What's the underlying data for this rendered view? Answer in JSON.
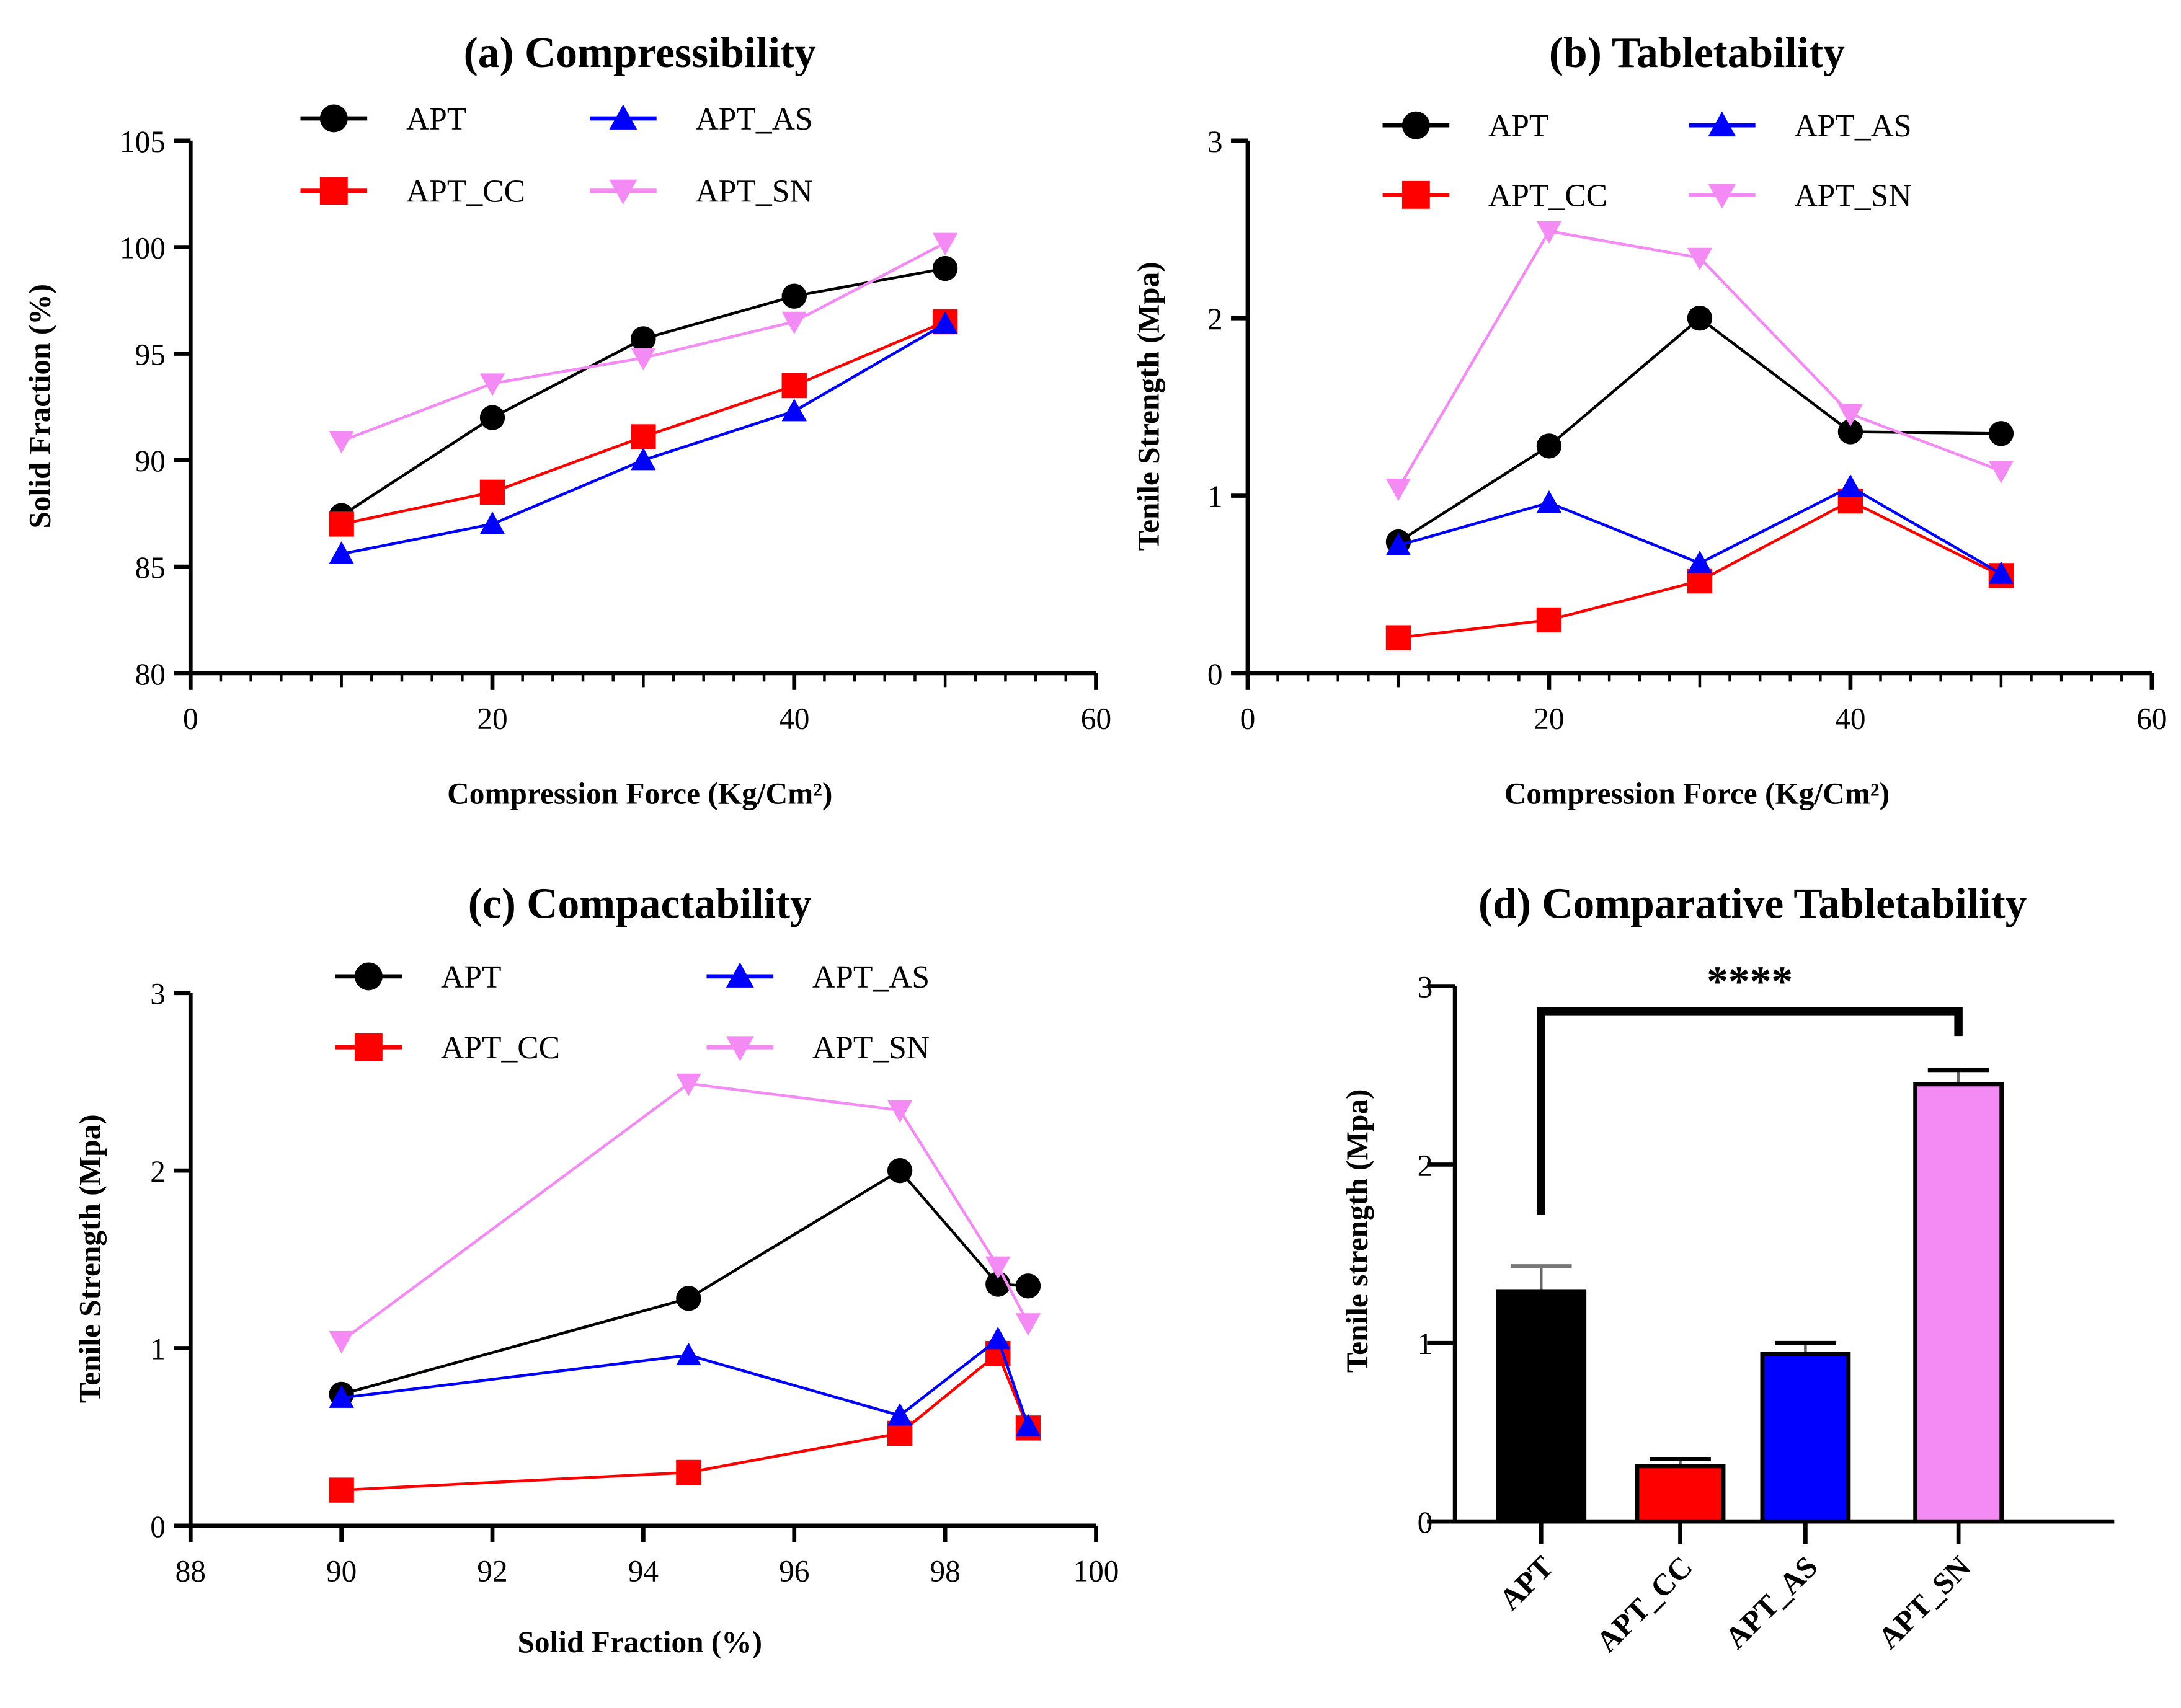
{
  "chart_data": [
    {
      "type": "line",
      "title": "(a) Compressibility",
      "xlabel": "Compression Force (Kg/Cm²)",
      "ylabel": "Solid Fraction (%)",
      "xlim": [
        0,
        60
      ],
      "ylim": [
        80,
        105
      ],
      "xticks": [
        "0",
        "20",
        "40",
        "60"
      ],
      "yticks": [
        "80",
        "85",
        "90",
        "95",
        "100",
        "105"
      ],
      "x": [
        10,
        20,
        30,
        40,
        50
      ],
      "series": [
        {
          "name": "APT",
          "color": "#000000",
          "marker": "circle",
          "values": [
            87.4,
            92.0,
            95.7,
            97.7,
            99.0
          ]
        },
        {
          "name": "APT_CC",
          "color": "#ff0000",
          "marker": "square",
          "values": [
            87.0,
            88.5,
            91.1,
            93.5,
            96.5
          ]
        },
        {
          "name": "APT_AS",
          "color": "#0000ff",
          "marker": "triangle-up",
          "values": [
            85.6,
            87.0,
            90.0,
            92.3,
            96.4
          ]
        },
        {
          "name": "APT_SN",
          "color": "#f48af4",
          "marker": "triangle-down",
          "values": [
            90.9,
            93.6,
            94.8,
            96.5,
            100.2
          ]
        }
      ],
      "legend": "top"
    },
    {
      "type": "line",
      "title": "(b) Tabletability",
      "xlabel": "Compression Force (Kg/Cm²)",
      "ylabel": "Tenile Strength (Mpa)",
      "xlim": [
        0,
        60
      ],
      "ylim": [
        0,
        3
      ],
      "xticks": [
        "0",
        "20",
        "40",
        "60"
      ],
      "yticks": [
        "0",
        "1",
        "2",
        "3"
      ],
      "x": [
        10,
        20,
        30,
        40,
        50
      ],
      "series": [
        {
          "name": "APT",
          "color": "#000000",
          "marker": "circle",
          "values": [
            0.74,
            1.28,
            2.0,
            1.36,
            1.35
          ]
        },
        {
          "name": "APT_CC",
          "color": "#ff0000",
          "marker": "square",
          "values": [
            0.2,
            0.3,
            0.52,
            0.97,
            0.55
          ]
        },
        {
          "name": "APT_AS",
          "color": "#0000ff",
          "marker": "triangle-up",
          "values": [
            0.72,
            0.96,
            0.62,
            1.05,
            0.56
          ]
        },
        {
          "name": "APT_SN",
          "color": "#f48af4",
          "marker": "triangle-down",
          "values": [
            1.04,
            2.49,
            2.34,
            1.46,
            1.14
          ]
        }
      ],
      "legend": "top"
    },
    {
      "type": "line",
      "title": "(c) Compactability",
      "xlabel": "Solid Fraction (%)",
      "ylabel": "Tenile Strength (Mpa)",
      "xlim": [
        88,
        100
      ],
      "ylim": [
        0,
        3
      ],
      "xticks": [
        "88",
        "90",
        "92",
        "94",
        "96",
        "98",
        "100"
      ],
      "yticks": [
        "0",
        "1",
        "2",
        "3"
      ],
      "x": [
        90.0,
        94.6,
        97.4,
        98.7,
        99.1
      ],
      "series": [
        {
          "name": "APT",
          "color": "#000000",
          "marker": "circle",
          "values": [
            0.74,
            1.28,
            2.0,
            1.36,
            1.35
          ]
        },
        {
          "name": "APT_CC",
          "color": "#ff0000",
          "marker": "square",
          "values": [
            0.2,
            0.3,
            0.52,
            0.97,
            0.55
          ]
        },
        {
          "name": "APT_AS",
          "color": "#0000ff",
          "marker": "triangle-up",
          "values": [
            0.72,
            0.96,
            0.62,
            1.05,
            0.56
          ]
        },
        {
          "name": "APT_SN",
          "color": "#f48af4",
          "marker": "triangle-down",
          "values": [
            1.04,
            2.49,
            2.34,
            1.46,
            1.14
          ]
        }
      ],
      "legend": "top"
    },
    {
      "type": "bar",
      "title": "(d) Comparative Tabletability",
      "xlabel": "",
      "ylabel": "Tenile strength (Mpa)",
      "ylim": [
        0,
        3
      ],
      "yticks": [
        "0",
        "1",
        "2",
        "3"
      ],
      "categories": [
        "APT",
        "APT_CC",
        "APT_AS",
        "APT_SN"
      ],
      "values": [
        1.29,
        0.31,
        0.94,
        2.45
      ],
      "errors": [
        0.14,
        0.04,
        0.06,
        0.08
      ],
      "colors": [
        "#000000",
        "#ff0000",
        "#0000ff",
        "#f48af4"
      ],
      "significance": {
        "from": "APT",
        "to": "APT_SN",
        "label": "****"
      }
    }
  ]
}
